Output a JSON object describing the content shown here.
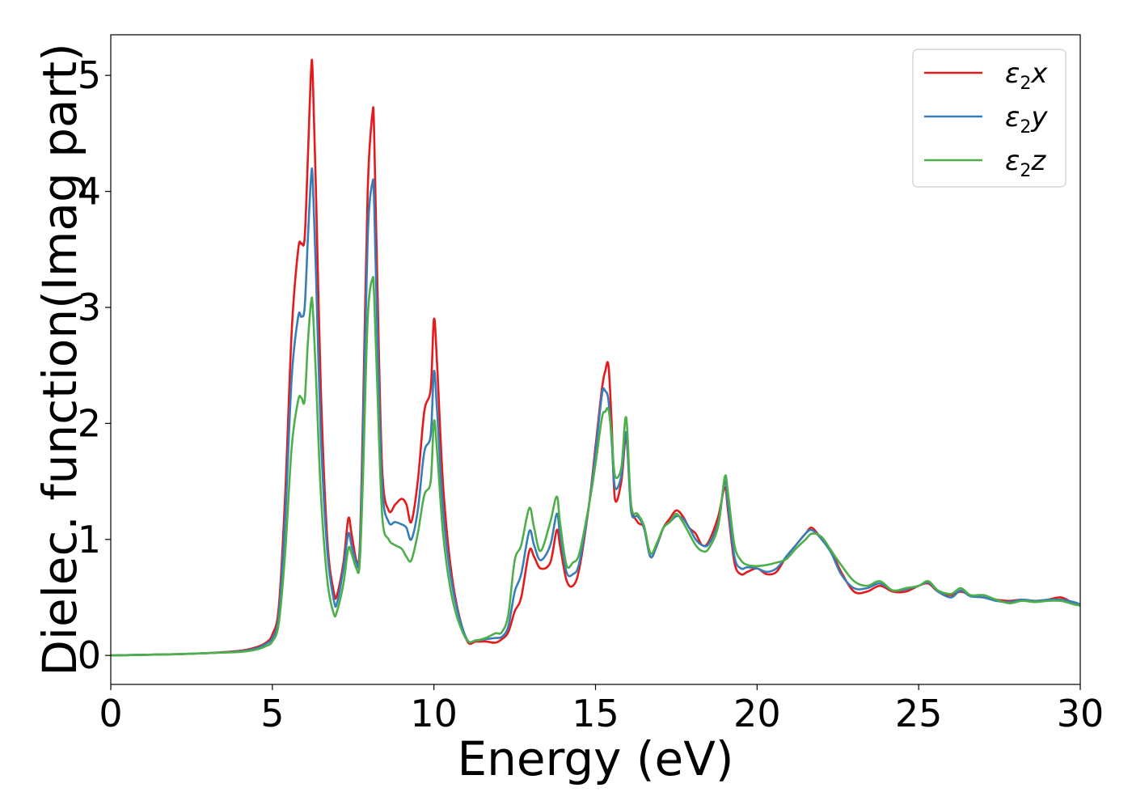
{
  "chart_data": {
    "type": "line",
    "xlabel": "Energy (eV)",
    "ylabel": "Dielec. function(Imag part)",
    "xlim": [
      0,
      30
    ],
    "ylim": [
      -0.25,
      5.35
    ],
    "xticks": [
      0,
      5,
      10,
      15,
      20,
      25,
      30
    ],
    "yticks": [
      0,
      1,
      2,
      3,
      4,
      5
    ],
    "grid": false,
    "legend_position": "top-right",
    "series": [
      {
        "name": "ε2x",
        "legend_base": "ε",
        "legend_sub": "2",
        "legend_var": "x",
        "color": "#e41a1c",
        "x": [
          0,
          1,
          2,
          3,
          4,
          4.5,
          4.8,
          5.0,
          5.2,
          5.4,
          5.6,
          5.8,
          5.9,
          6.0,
          6.1,
          6.2,
          6.25,
          6.35,
          6.5,
          6.7,
          6.9,
          7.0,
          7.2,
          7.35,
          7.45,
          7.6,
          7.7,
          7.8,
          7.95,
          8.1,
          8.15,
          8.25,
          8.4,
          8.6,
          8.8,
          9.0,
          9.15,
          9.3,
          9.5,
          9.7,
          9.9,
          10.0,
          10.1,
          10.3,
          10.6,
          11.0,
          11.3,
          11.6,
          11.9,
          12.1,
          12.3,
          12.5,
          12.7,
          12.95,
          13.1,
          13.3,
          13.6,
          13.8,
          13.9,
          14.1,
          14.3,
          14.5,
          14.8,
          15.0,
          15.2,
          15.3,
          15.4,
          15.5,
          15.6,
          15.8,
          15.95,
          16.1,
          16.3,
          16.5,
          16.7,
          16.9,
          17.1,
          17.3,
          17.5,
          17.7,
          17.9,
          18.1,
          18.3,
          18.5,
          18.8,
          19.0,
          19.1,
          19.3,
          19.5,
          19.7,
          20.0,
          20.3,
          20.6,
          20.9,
          21.2,
          21.5,
          21.7,
          22.0,
          22.3,
          22.6,
          23.0,
          23.4,
          23.8,
          24.2,
          24.6,
          25.0,
          25.3,
          25.6,
          26.0,
          26.3,
          26.6,
          27.0,
          27.4,
          27.8,
          28.2,
          28.6,
          29.0,
          29.4,
          29.8,
          30.0
        ],
        "values": [
          0,
          0.005,
          0.01,
          0.02,
          0.04,
          0.07,
          0.11,
          0.18,
          0.42,
          1.4,
          2.8,
          3.5,
          3.55,
          3.6,
          4.3,
          5.05,
          5.0,
          4.0,
          2.3,
          1.0,
          0.55,
          0.52,
          0.8,
          1.18,
          1.05,
          0.82,
          0.9,
          2.0,
          4.0,
          4.68,
          4.5,
          3.2,
          1.6,
          1.25,
          1.3,
          1.35,
          1.3,
          1.15,
          1.5,
          2.1,
          2.3,
          2.9,
          2.5,
          1.4,
          0.6,
          0.14,
          0.12,
          0.12,
          0.11,
          0.14,
          0.2,
          0.38,
          0.5,
          0.9,
          0.85,
          0.75,
          0.8,
          1.08,
          0.95,
          0.65,
          0.6,
          0.75,
          1.3,
          1.8,
          2.3,
          2.45,
          2.5,
          2.0,
          1.35,
          1.5,
          1.88,
          1.3,
          1.15,
          1.1,
          0.85,
          0.95,
          1.1,
          1.18,
          1.25,
          1.2,
          1.1,
          1.05,
          0.95,
          0.98,
          1.2,
          1.45,
          1.25,
          0.8,
          0.7,
          0.72,
          0.75,
          0.7,
          0.72,
          0.85,
          0.95,
          1.05,
          1.1,
          1.0,
          0.9,
          0.72,
          0.55,
          0.55,
          0.6,
          0.55,
          0.55,
          0.6,
          0.62,
          0.55,
          0.52,
          0.55,
          0.52,
          0.5,
          0.48,
          0.47,
          0.48,
          0.47,
          0.48,
          0.5,
          0.45,
          0.44
        ]
      },
      {
        "name": "ε2y",
        "legend_base": "ε",
        "legend_sub": "2",
        "legend_var": "y",
        "color": "#377eb8",
        "x": [
          0,
          1,
          2,
          3,
          4,
          4.5,
          4.8,
          5.0,
          5.2,
          5.4,
          5.6,
          5.8,
          5.9,
          6.0,
          6.1,
          6.2,
          6.25,
          6.35,
          6.5,
          6.7,
          6.9,
          7.0,
          7.2,
          7.35,
          7.45,
          7.6,
          7.7,
          7.8,
          7.95,
          8.1,
          8.15,
          8.25,
          8.4,
          8.6,
          8.8,
          9.0,
          9.15,
          9.3,
          9.5,
          9.7,
          9.9,
          10.0,
          10.1,
          10.3,
          10.6,
          11.0,
          11.3,
          11.6,
          11.9,
          12.1,
          12.3,
          12.5,
          12.7,
          12.95,
          13.1,
          13.3,
          13.6,
          13.8,
          13.9,
          14.1,
          14.3,
          14.5,
          14.8,
          15.0,
          15.2,
          15.3,
          15.4,
          15.5,
          15.6,
          15.8,
          15.95,
          16.1,
          16.3,
          16.5,
          16.7,
          16.9,
          17.1,
          17.3,
          17.5,
          17.7,
          17.9,
          18.1,
          18.3,
          18.5,
          18.8,
          19.0,
          19.1,
          19.3,
          19.5,
          19.7,
          20.0,
          20.3,
          20.6,
          20.9,
          21.2,
          21.5,
          21.7,
          22.0,
          22.3,
          22.6,
          23.0,
          23.4,
          23.8,
          24.2,
          24.6,
          25.0,
          25.3,
          25.6,
          26.0,
          26.3,
          26.6,
          27.0,
          27.4,
          27.8,
          28.2,
          28.6,
          29.0,
          29.4,
          29.8,
          30.0
        ],
        "values": [
          0,
          0.005,
          0.01,
          0.02,
          0.035,
          0.06,
          0.1,
          0.15,
          0.35,
          1.2,
          2.4,
          2.92,
          2.92,
          3.0,
          3.6,
          4.13,
          4.1,
          3.3,
          1.9,
          0.9,
          0.48,
          0.45,
          0.75,
          1.05,
          0.95,
          0.8,
          0.85,
          1.8,
          3.6,
          4.08,
          3.9,
          2.8,
          1.45,
          1.15,
          1.15,
          1.13,
          1.1,
          1.0,
          1.25,
          1.75,
          1.9,
          2.45,
          2.1,
          1.2,
          0.55,
          0.15,
          0.13,
          0.14,
          0.15,
          0.16,
          0.25,
          0.55,
          0.7,
          1.07,
          0.95,
          0.82,
          0.95,
          1.22,
          1.05,
          0.72,
          0.7,
          0.8,
          1.3,
          1.75,
          2.25,
          2.28,
          2.2,
          1.85,
          1.45,
          1.55,
          1.92,
          1.25,
          1.2,
          1.1,
          0.85,
          0.95,
          1.1,
          1.15,
          1.2,
          1.18,
          1.1,
          1.0,
          0.95,
          0.96,
          1.15,
          1.5,
          1.3,
          0.85,
          0.75,
          0.76,
          0.75,
          0.72,
          0.75,
          0.85,
          0.95,
          1.05,
          1.08,
          1.0,
          0.88,
          0.7,
          0.58,
          0.58,
          0.62,
          0.56,
          0.57,
          0.6,
          0.63,
          0.55,
          0.5,
          0.56,
          0.51,
          0.5,
          0.47,
          0.46,
          0.48,
          0.47,
          0.48,
          0.48,
          0.46,
          0.44
        ]
      },
      {
        "name": "ε2z",
        "legend_base": "ε",
        "legend_sub": "2",
        "legend_var": "z",
        "color": "#4daf4a",
        "x": [
          0,
          1,
          2,
          3,
          4,
          4.5,
          4.8,
          5.0,
          5.2,
          5.4,
          5.6,
          5.8,
          5.9,
          6.0,
          6.1,
          6.2,
          6.25,
          6.35,
          6.5,
          6.7,
          6.9,
          7.0,
          7.2,
          7.35,
          7.45,
          7.6,
          7.7,
          7.8,
          7.95,
          8.1,
          8.15,
          8.25,
          8.4,
          8.6,
          8.8,
          9.0,
          9.15,
          9.3,
          9.5,
          9.7,
          9.9,
          10.0,
          10.1,
          10.3,
          10.6,
          11.0,
          11.3,
          11.6,
          11.9,
          12.1,
          12.3,
          12.5,
          12.7,
          12.95,
          13.1,
          13.3,
          13.6,
          13.8,
          13.9,
          14.1,
          14.3,
          14.5,
          14.8,
          15.0,
          15.2,
          15.3,
          15.4,
          15.5,
          15.6,
          15.8,
          15.95,
          16.1,
          16.3,
          16.5,
          16.7,
          16.9,
          17.1,
          17.3,
          17.5,
          17.7,
          17.9,
          18.1,
          18.3,
          18.5,
          18.8,
          19.0,
          19.1,
          19.3,
          19.5,
          19.7,
          20.0,
          20.3,
          20.6,
          20.9,
          21.2,
          21.5,
          21.7,
          22.0,
          22.3,
          22.6,
          23.0,
          23.4,
          23.8,
          24.2,
          24.6,
          25.0,
          25.3,
          25.6,
          26.0,
          26.3,
          26.6,
          27.0,
          27.4,
          27.8,
          28.2,
          28.6,
          29.0,
          29.4,
          29.8,
          30.0
        ],
        "values": [
          0,
          0.005,
          0.01,
          0.02,
          0.03,
          0.05,
          0.08,
          0.12,
          0.28,
          0.9,
          1.8,
          2.2,
          2.22,
          2.2,
          2.7,
          3.05,
          3.0,
          2.4,
          1.4,
          0.65,
          0.36,
          0.38,
          0.62,
          0.92,
          0.88,
          0.75,
          0.78,
          1.5,
          2.9,
          3.25,
          3.1,
          2.3,
          1.2,
          1.0,
          0.95,
          0.92,
          0.85,
          0.82,
          1.05,
          1.38,
          1.5,
          2.02,
          1.75,
          1.0,
          0.45,
          0.14,
          0.13,
          0.15,
          0.19,
          0.2,
          0.35,
          0.82,
          0.95,
          1.27,
          1.1,
          0.9,
          1.15,
          1.37,
          1.15,
          0.78,
          0.8,
          0.88,
          1.3,
          1.65,
          2.05,
          2.1,
          2.12,
          1.9,
          1.55,
          1.62,
          2.05,
          1.3,
          1.22,
          1.12,
          0.88,
          0.97,
          1.1,
          1.15,
          1.22,
          1.15,
          1.05,
          0.95,
          0.9,
          0.92,
          1.12,
          1.54,
          1.4,
          0.95,
          0.82,
          0.78,
          0.77,
          0.78,
          0.8,
          0.83,
          0.92,
          1.0,
          1.05,
          1.02,
          0.9,
          0.78,
          0.64,
          0.6,
          0.64,
          0.56,
          0.58,
          0.6,
          0.64,
          0.56,
          0.53,
          0.58,
          0.52,
          0.52,
          0.48,
          0.45,
          0.47,
          0.46,
          0.47,
          0.47,
          0.44,
          0.43
        ]
      }
    ]
  }
}
